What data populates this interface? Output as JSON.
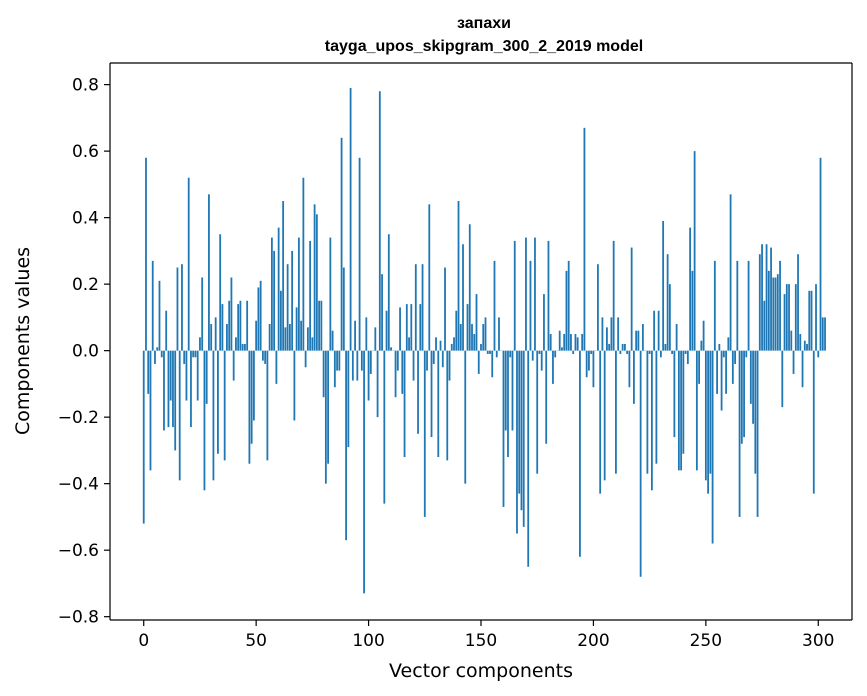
{
  "chart_data": {
    "type": "bar",
    "title_line1": "запахи",
    "title_line2": "tayga_upos_skipgram_300_2_2019 model",
    "xlabel": "Vector components",
    "ylabel": "Components values",
    "xlim": [
      -15,
      315
    ],
    "ylim": [
      -0.81,
      0.865
    ],
    "xticks": [
      0,
      50,
      100,
      150,
      200,
      250,
      300
    ],
    "xtick_labels": [
      "0",
      "50",
      "100",
      "150",
      "200",
      "250",
      "300"
    ],
    "yticks": [
      -0.8,
      -0.6,
      -0.4,
      -0.2,
      0.0,
      0.2,
      0.4,
      0.6,
      0.8
    ],
    "ytick_labels": [
      "−0.8",
      "−0.6",
      "−0.4",
      "−0.2",
      "0.0",
      "0.2",
      "0.4",
      "0.6",
      "0.8"
    ],
    "bar_color": "#1f77b4",
    "grid": false,
    "values": [
      -0.52,
      0.58,
      -0.13,
      -0.36,
      0.27,
      -0.04,
      0.01,
      0.21,
      -0.02,
      -0.24,
      0.12,
      -0.23,
      -0.15,
      -0.23,
      -0.3,
      0.25,
      -0.39,
      0.26,
      -0.04,
      -0.15,
      0.52,
      -0.23,
      -0.02,
      -0.02,
      -0.15,
      0.04,
      0.22,
      -0.42,
      -0.16,
      0.47,
      0.08,
      -0.39,
      0.1,
      -0.31,
      0.35,
      0.14,
      -0.33,
      0.08,
      0.15,
      0.22,
      -0.09,
      0.04,
      0.14,
      0.15,
      0.02,
      0.02,
      0.15,
      -0.34,
      -0.28,
      -0.21,
      0.09,
      0.19,
      0.21,
      -0.03,
      -0.04,
      -0.33,
      0.08,
      0.34,
      0.3,
      -0.1,
      0.37,
      0.18,
      0.45,
      0.07,
      0.26,
      0.08,
      0.3,
      -0.21,
      0.13,
      0.34,
      0.09,
      0.52,
      -0.05,
      0.07,
      0.33,
      0.04,
      0.44,
      0.41,
      0.15,
      0.15,
      -0.14,
      -0.4,
      -0.34,
      0.34,
      0.06,
      -0.11,
      -0.06,
      -0.06,
      0.64,
      0.25,
      -0.57,
      -0.29,
      0.79,
      -0.09,
      0.09,
      -0.09,
      0.58,
      -0.06,
      -0.73,
      0.1,
      -0.15,
      -0.07,
      0.0,
      0.07,
      -0.2,
      0.78,
      0.23,
      -0.46,
      0.12,
      0.35,
      0.01,
      0.0,
      -0.14,
      -0.06,
      0.13,
      -0.13,
      -0.32,
      0.14,
      0.04,
      0.14,
      -0.09,
      0.26,
      -0.25,
      0.14,
      0.26,
      -0.5,
      -0.06,
      0.44,
      -0.26,
      -0.04,
      0.04,
      -0.32,
      0.03,
      -0.05,
      0.25,
      -0.33,
      -0.09,
      0.02,
      0.04,
      0.12,
      0.45,
      0.08,
      0.32,
      -0.4,
      0.14,
      0.38,
      0.08,
      0.05,
      0.17,
      -0.07,
      0.02,
      0.08,
      0.1,
      -0.01,
      -0.01,
      -0.08,
      0.27,
      -0.02,
      0.1,
      0.0,
      -0.47,
      -0.24,
      -0.32,
      -0.02,
      -0.24,
      0.33,
      -0.55,
      -0.43,
      -0.48,
      -0.53,
      0.34,
      -0.65,
      0.27,
      -0.03,
      0.34,
      -0.37,
      -0.01,
      -0.06,
      0.17,
      -0.28,
      0.33,
      0.05,
      -0.1,
      -0.02,
      0.0,
      0.06,
      0.01,
      0.05,
      0.24,
      0.27,
      0.05,
      -0.01,
      0.05,
      0.04,
      -0.62,
      0.05,
      0.67,
      -0.08,
      -0.06,
      -0.01,
      -0.11,
      0.0,
      0.26,
      -0.43,
      0.1,
      -0.39,
      0.07,
      0.02,
      0.1,
      0.33,
      -0.37,
      0.1,
      -0.01,
      0.02,
      0.02,
      -0.01,
      -0.11,
      0.31,
      -0.16,
      0.06,
      0.06,
      -0.68,
      0.08,
      0.0,
      -0.37,
      -0.01,
      -0.42,
      0.12,
      -0.34,
      0.12,
      -0.02,
      0.39,
      0.02,
      0.29,
      0.2,
      -0.01,
      -0.26,
      0.08,
      -0.36,
      -0.36,
      -0.31,
      -0.01,
      -0.04,
      0.37,
      0.24,
      0.6,
      -0.36,
      -0.1,
      0.03,
      0.09,
      -0.39,
      -0.43,
      -0.37,
      -0.58,
      0.27,
      -0.13,
      0.02,
      -0.18,
      -0.02,
      -0.13,
      0.04,
      0.47,
      -0.1,
      -0.04,
      0.27,
      -0.5,
      -0.28,
      -0.26,
      -0.02,
      0.27,
      -0.16,
      -0.22,
      -0.37,
      -0.5,
      0.29,
      0.32,
      0.15,
      0.32,
      0.24,
      0.31,
      0.22,
      0.22,
      0.23,
      0.27,
      -0.17,
      0.17,
      0.2,
      0.2,
      0.06,
      -0.07,
      0.2,
      0.29,
      0.05,
      -0.11,
      0.03,
      0.02,
      0.18,
      0.18,
      -0.43,
      0.2,
      -0.02,
      0.58,
      0.1,
      0.1
    ]
  }
}
